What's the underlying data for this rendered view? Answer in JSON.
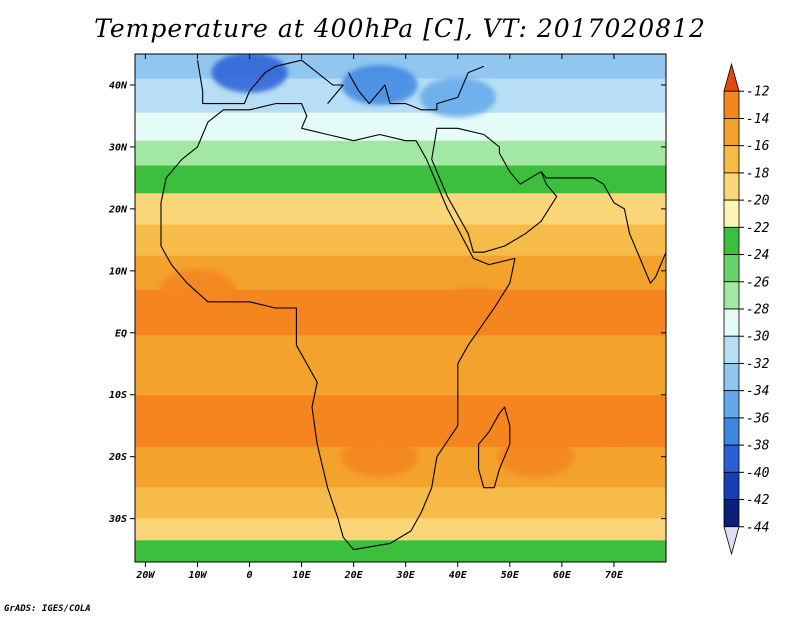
{
  "title": "Temperature at 400hPa [C], VT: 2017020812",
  "credit": "GrADS: IGES/COLA",
  "map": {
    "lon_range": [
      -22,
      80
    ],
    "lat_range": [
      -37,
      45
    ],
    "lon_ticks": [
      {
        "value": -20,
        "label": "20W"
      },
      {
        "value": -10,
        "label": "10W"
      },
      {
        "value": 0,
        "label": "0"
      },
      {
        "value": 10,
        "label": "10E"
      },
      {
        "value": 20,
        "label": "20E"
      },
      {
        "value": 30,
        "label": "30E"
      },
      {
        "value": 40,
        "label": "40E"
      },
      {
        "value": 50,
        "label": "50E"
      },
      {
        "value": 60,
        "label": "60E"
      },
      {
        "value": 70,
        "label": "70E"
      }
    ],
    "lat_ticks": [
      {
        "value": 40,
        "label": "40N"
      },
      {
        "value": 30,
        "label": "30N"
      },
      {
        "value": 20,
        "label": "20N"
      },
      {
        "value": 10,
        "label": "10N"
      },
      {
        "value": 0,
        "label": "EQ"
      },
      {
        "value": -10,
        "label": "10S"
      },
      {
        "value": -20,
        "label": "20S"
      },
      {
        "value": -30,
        "label": "30S"
      }
    ],
    "temperature_bands_by_latitude": [
      {
        "lat": 44,
        "value": -34
      },
      {
        "lat": 38,
        "value": -32
      },
      {
        "lat": 33,
        "value": -30
      },
      {
        "lat": 29,
        "value": -28
      },
      {
        "lat": 25,
        "value": -24
      },
      {
        "lat": 20,
        "value": -20
      },
      {
        "lat": 15,
        "value": -18
      },
      {
        "lat": 10,
        "value": -16
      },
      {
        "lat": 4,
        "value": -14
      },
      {
        "lat": -5,
        "value": -15
      },
      {
        "lat": -15,
        "value": -14
      },
      {
        "lat": -22,
        "value": -15
      },
      {
        "lat": -28,
        "value": -17
      },
      {
        "lat": -32,
        "value": -20
      },
      {
        "lat": -35,
        "value": -24
      }
    ],
    "warm_patches": [
      {
        "lon": 43,
        "lat": 4,
        "value": -13
      },
      {
        "lon": -10,
        "lat": 7,
        "value": -13
      },
      {
        "lon": 25,
        "lat": -20,
        "value": -13
      },
      {
        "lon": 55,
        "lat": -20,
        "value": -13
      },
      {
        "lon": 65,
        "lat": -15,
        "value": -13
      }
    ],
    "cold_patches": [
      {
        "lon": 0,
        "lat": 42,
        "value": -40
      },
      {
        "lon": 25,
        "lat": 40,
        "value": -38
      },
      {
        "lon": 40,
        "lat": 38,
        "value": -36
      }
    ]
  },
  "colorbar": {
    "levels": [
      -12,
      -14,
      -16,
      -18,
      -20,
      -22,
      -24,
      -26,
      -28,
      -30,
      -32,
      -34,
      -36,
      -38,
      -40,
      -42,
      -44
    ],
    "colors": [
      "#e34a0f",
      "#f5851f",
      "#f3a22c",
      "#f6bb48",
      "#fad678",
      "#fdf5b4",
      "#3cbf3c",
      "#67d267",
      "#a3e8a2",
      "#e4fbf8",
      "#b7def4",
      "#91c6f0",
      "#63a9ea",
      "#3d86e2",
      "#2a5fd6",
      "#1740b4",
      "#0b1f7a",
      "#e0dcf5"
    ]
  },
  "africa_outline": [
    [
      -17,
      21
    ],
    [
      -16,
      25
    ],
    [
      -13,
      28
    ],
    [
      -10,
      30
    ],
    [
      -8,
      34
    ],
    [
      -5,
      36
    ],
    [
      0,
      36
    ],
    [
      5,
      37
    ],
    [
      10,
      37
    ],
    [
      11,
      35
    ],
    [
      10,
      33
    ],
    [
      15,
      32
    ],
    [
      20,
      31
    ],
    [
      25,
      32
    ],
    [
      30,
      31
    ],
    [
      32,
      31
    ],
    [
      34,
      28
    ],
    [
      38,
      20
    ],
    [
      43,
      12
    ],
    [
      46,
      11
    ],
    [
      51,
      12
    ],
    [
      50,
      8
    ],
    [
      47,
      4
    ],
    [
      42,
      -2
    ],
    [
      40,
      -5
    ],
    [
      40,
      -10
    ],
    [
      40,
      -15
    ],
    [
      36,
      -20
    ],
    [
      35,
      -25
    ],
    [
      33,
      -29
    ],
    [
      31,
      -32
    ],
    [
      27,
      -34
    ],
    [
      20,
      -35
    ],
    [
      18,
      -33
    ],
    [
      17,
      -30
    ],
    [
      15,
      -25
    ],
    [
      13,
      -18
    ],
    [
      12,
      -12
    ],
    [
      13,
      -8
    ],
    [
      9,
      -2
    ],
    [
      9,
      4
    ],
    [
      5,
      4
    ],
    [
      0,
      5
    ],
    [
      -5,
      5
    ],
    [
      -8,
      5
    ],
    [
      -12,
      8
    ],
    [
      -15,
      11
    ],
    [
      -17,
      14
    ],
    [
      -17,
      21
    ]
  ],
  "arabia_outline": [
    [
      35,
      28
    ],
    [
      38,
      22
    ],
    [
      42,
      16
    ],
    [
      43,
      13
    ],
    [
      45,
      13
    ],
    [
      49,
      14
    ],
    [
      53,
      16
    ],
    [
      56,
      18
    ],
    [
      59,
      22
    ],
    [
      57,
      24
    ],
    [
      56,
      26
    ],
    [
      52,
      24
    ],
    [
      50,
      26
    ],
    [
      48,
      29
    ],
    [
      48,
      30
    ],
    [
      45,
      32
    ],
    [
      40,
      33
    ],
    [
      36,
      33
    ],
    [
      35,
      28
    ]
  ],
  "madagascar_outline": [
    [
      49,
      -12
    ],
    [
      50,
      -15
    ],
    [
      50,
      -18
    ],
    [
      48,
      -22
    ],
    [
      47,
      -25
    ],
    [
      45,
      -25
    ],
    [
      44,
      -22
    ],
    [
      44,
      -18
    ],
    [
      46,
      -16
    ],
    [
      48,
      -13
    ],
    [
      49,
      -12
    ]
  ],
  "europe_coast": [
    [
      -10,
      44
    ],
    [
      -9,
      39
    ],
    [
      -9,
      37
    ],
    [
      -6,
      37
    ],
    [
      -1,
      37
    ],
    [
      0,
      39
    ],
    [
      3,
      42
    ],
    [
      5,
      43
    ],
    [
      10,
      44
    ],
    [
      13,
      42
    ],
    [
      16,
      40
    ],
    [
      18,
      40
    ],
    [
      16,
      38
    ],
    [
      15,
      37
    ]
  ],
  "balkans_turkey_coast": [
    [
      19,
      42
    ],
    [
      21,
      39
    ],
    [
      23,
      37
    ],
    [
      24,
      38
    ],
    [
      26,
      40
    ],
    [
      27,
      37
    ],
    [
      30,
      37
    ],
    [
      33,
      36
    ],
    [
      36,
      36
    ],
    [
      36,
      37
    ],
    [
      40,
      38
    ],
    [
      42,
      42
    ],
    [
      45,
      43
    ]
  ],
  "asia_coast": [
    [
      56,
      26
    ],
    [
      57,
      25
    ],
    [
      61,
      25
    ],
    [
      66,
      25
    ],
    [
      68,
      24
    ],
    [
      70,
      21
    ],
    [
      72,
      20
    ],
    [
      73,
      16
    ],
    [
      75,
      12
    ],
    [
      77,
      8
    ],
    [
      78,
      9
    ],
    [
      80,
      13
    ]
  ]
}
